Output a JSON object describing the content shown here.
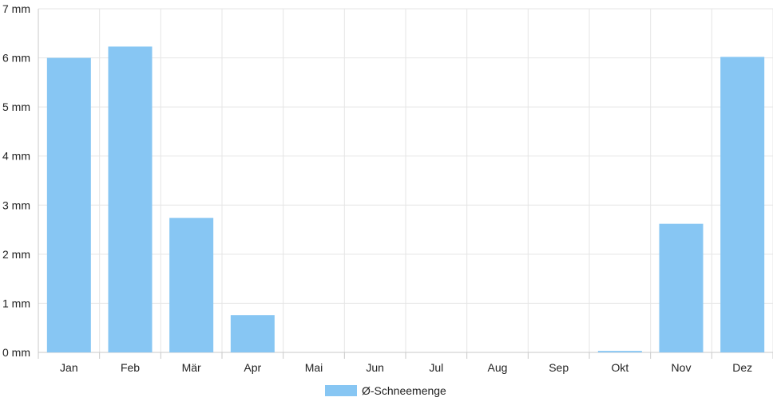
{
  "chart_data": {
    "type": "bar",
    "categories": [
      "Jan",
      "Feb",
      "Mär",
      "Apr",
      "Mai",
      "Jun",
      "Jul",
      "Aug",
      "Sep",
      "Okt",
      "Nov",
      "Dez"
    ],
    "series": [
      {
        "name": "Ø-Schneemenge",
        "values": [
          6.0,
          6.23,
          2.74,
          0.76,
          0,
          0,
          0,
          0,
          0,
          0.03,
          2.62,
          6.02
        ]
      }
    ],
    "yticks": [
      "0 mm",
      "1 mm",
      "2 mm",
      "3 mm",
      "4 mm",
      "5 mm",
      "6 mm",
      "7 mm"
    ],
    "ylim": [
      0,
      7
    ],
    "grid": true,
    "legend_position": "bottom",
    "colors": {
      "bar": "#87c6f3",
      "grid": "#e5e5e5",
      "axis": "#c9c9c9"
    }
  }
}
